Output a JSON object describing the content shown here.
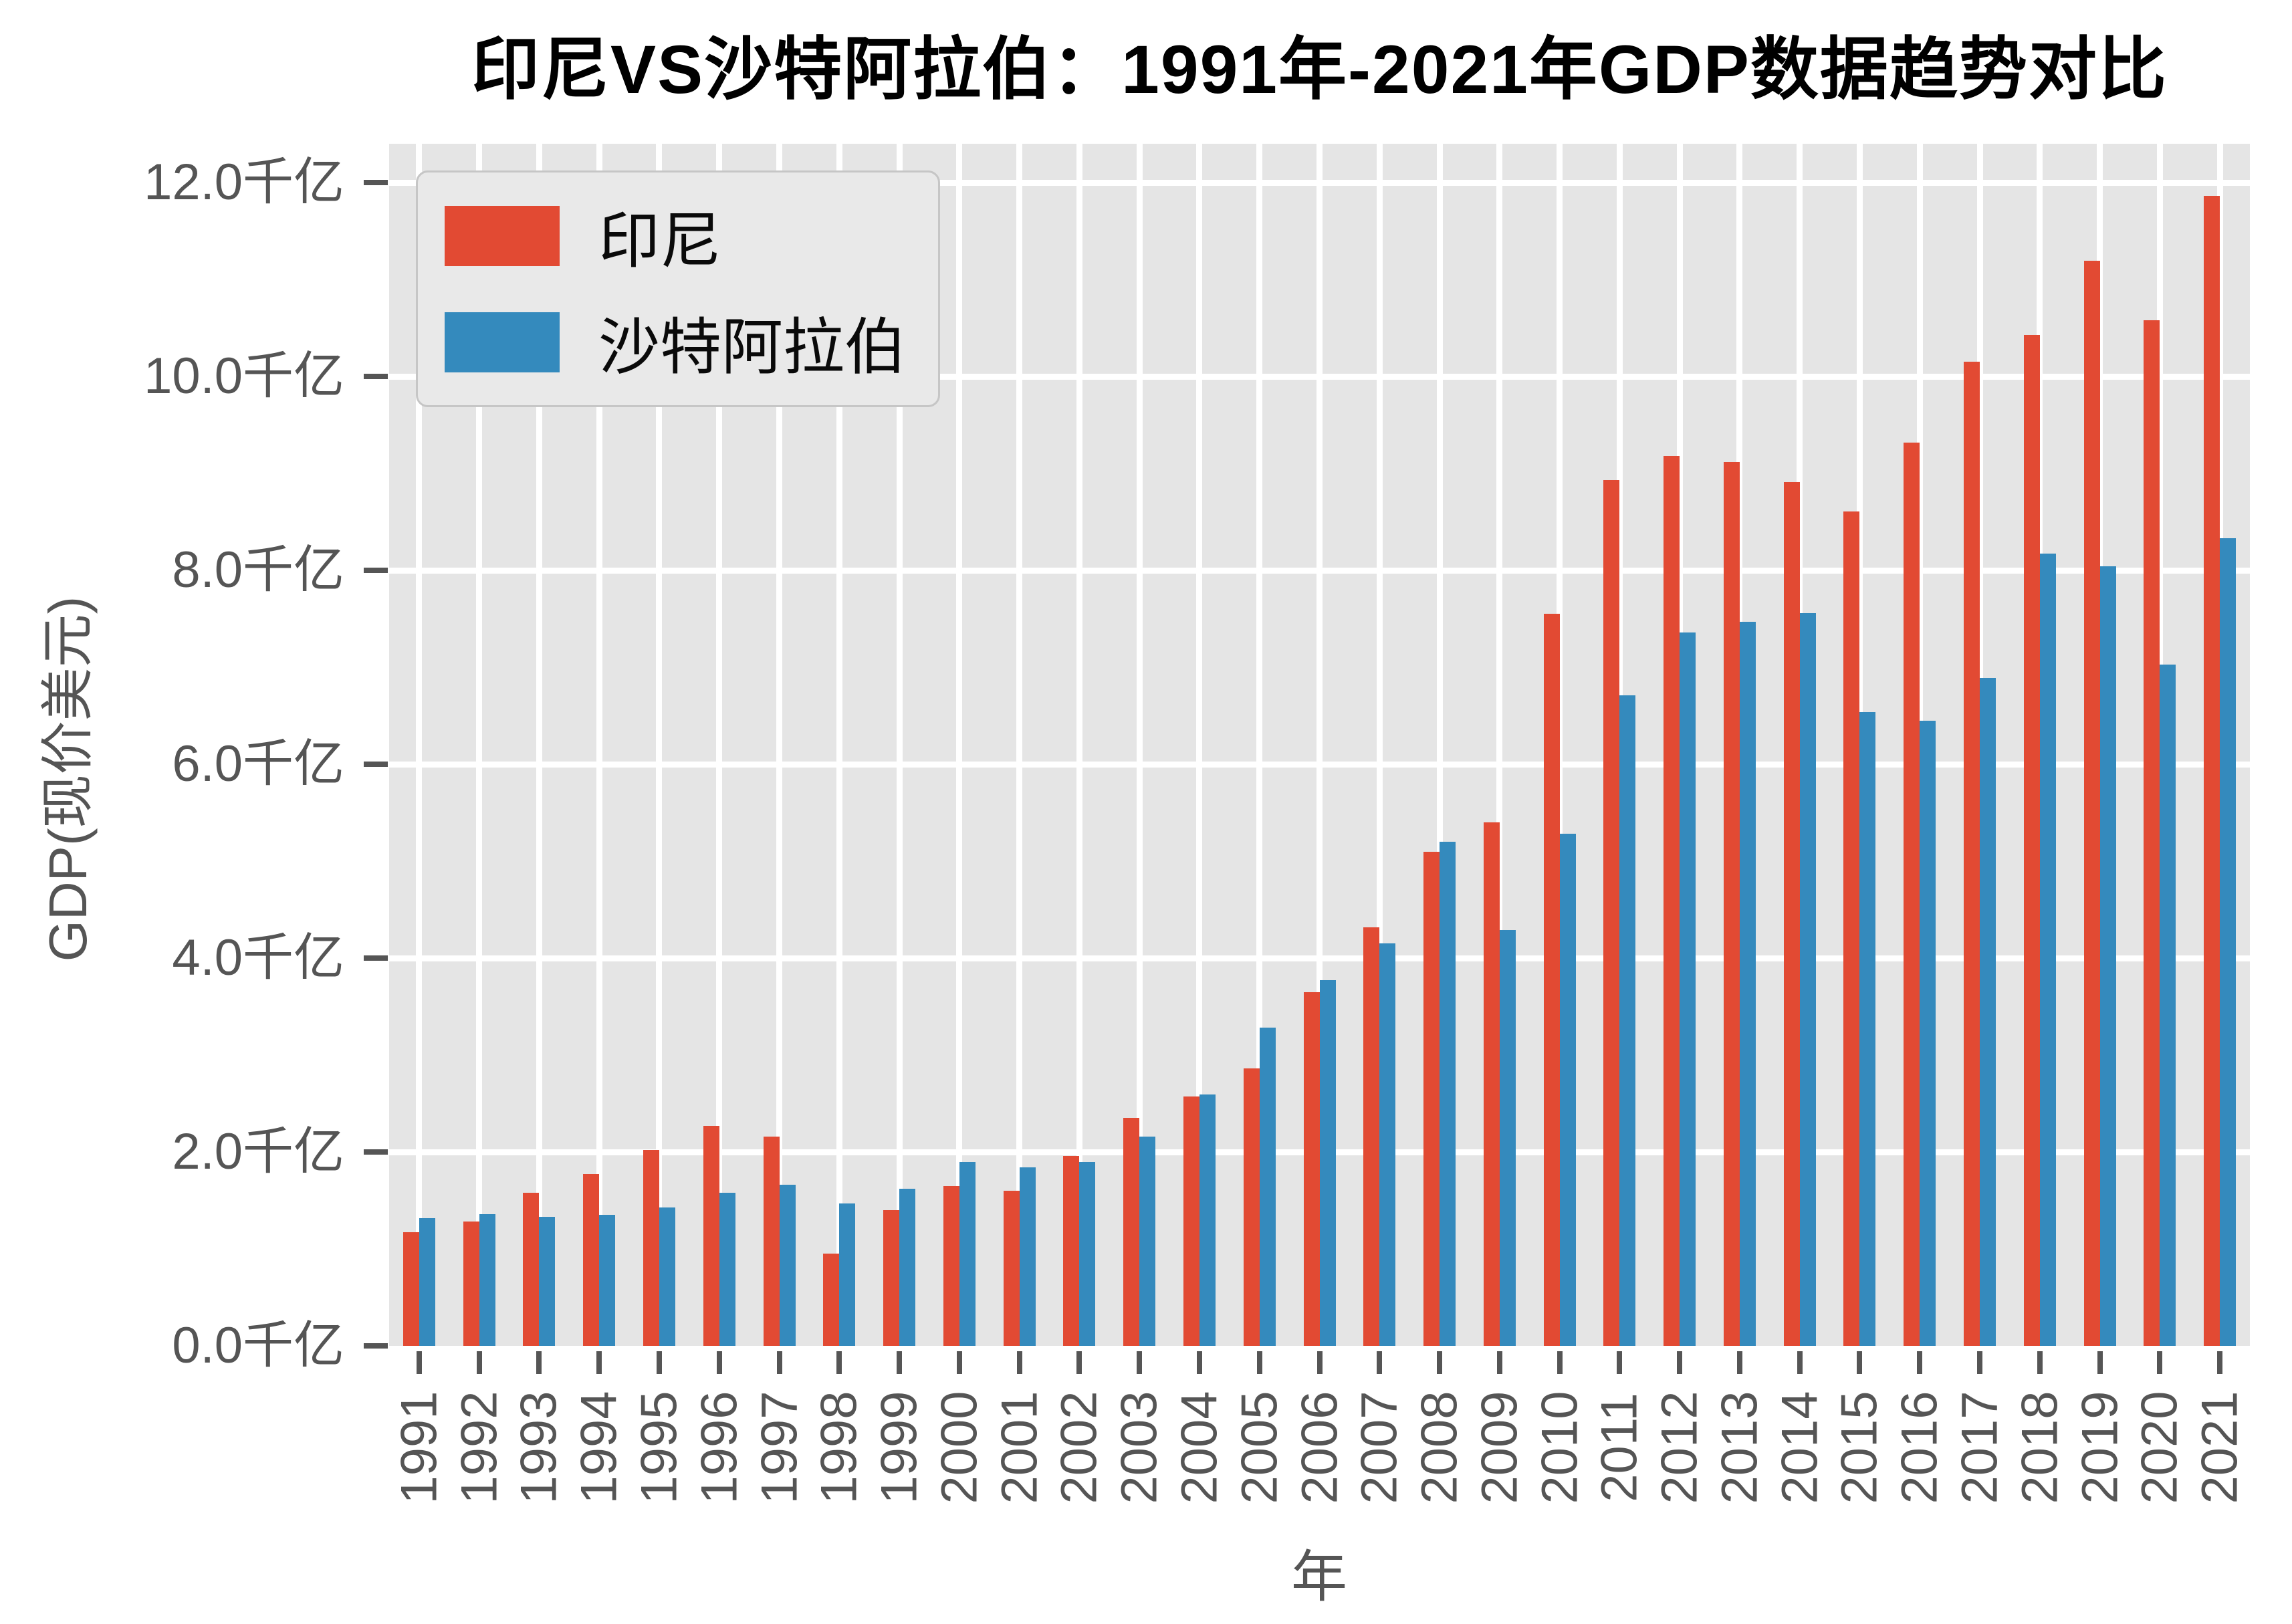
{
  "chart_data": {
    "type": "bar",
    "title": "印尼VS沙特阿拉伯：1991年-2021年GDP数据趋势对比",
    "xlabel": "年",
    "ylabel": "GDP(现价美元)",
    "unit": "千亿",
    "categories": [
      "1991",
      "1992",
      "1993",
      "1994",
      "1995",
      "1996",
      "1997",
      "1998",
      "1999",
      "2000",
      "2001",
      "2002",
      "2003",
      "2004",
      "2005",
      "2006",
      "2007",
      "2008",
      "2009",
      "2010",
      "2011",
      "2012",
      "2013",
      "2014",
      "2015",
      "2016",
      "2017",
      "2018",
      "2019",
      "2020",
      "2021"
    ],
    "series": [
      {
        "key": "indonesia",
        "name": "印尼",
        "color": "#E24A33",
        "values": [
          1.17,
          1.28,
          1.58,
          1.77,
          2.02,
          2.27,
          2.16,
          0.95,
          1.4,
          1.65,
          1.6,
          1.96,
          2.35,
          2.57,
          2.86,
          3.65,
          4.32,
          5.1,
          5.4,
          7.55,
          8.93,
          9.18,
          9.12,
          8.91,
          8.61,
          9.32,
          10.15,
          10.43,
          11.19,
          10.58,
          11.86
        ]
      },
      {
        "key": "saudi-arabia",
        "name": "沙特阿拉伯",
        "color": "#348ABD",
        "values": [
          1.32,
          1.36,
          1.33,
          1.35,
          1.43,
          1.58,
          1.66,
          1.47,
          1.62,
          1.9,
          1.84,
          1.9,
          2.16,
          2.59,
          3.28,
          3.77,
          4.15,
          5.2,
          4.29,
          5.28,
          6.71,
          7.36,
          7.47,
          7.56,
          6.54,
          6.45,
          6.89,
          8.17,
          8.04,
          7.03,
          8.33
        ]
      }
    ],
    "y_ticks": [
      {
        "value": 0,
        "label": "0.0千亿"
      },
      {
        "value": 2,
        "label": "2.0千亿"
      },
      {
        "value": 4,
        "label": "4.0千亿"
      },
      {
        "value": 6,
        "label": "6.0千亿"
      },
      {
        "value": 8,
        "label": "8.0千亿"
      },
      {
        "value": 10,
        "label": "10.0千亿"
      },
      {
        "value": 12,
        "label": "12.0千亿"
      }
    ],
    "ylim": [
      0,
      12.4
    ],
    "grid": true,
    "legend_position": "upper left",
    "colors": {
      "figure_bg": "#FFFFFF",
      "plot_bg": "#E5E5E5",
      "grid": "#FFFFFF",
      "tick_text": "#555555",
      "title_text": "#000000",
      "legend_bg": "#E9E9E9",
      "legend_border": "#C6C6C6"
    }
  }
}
